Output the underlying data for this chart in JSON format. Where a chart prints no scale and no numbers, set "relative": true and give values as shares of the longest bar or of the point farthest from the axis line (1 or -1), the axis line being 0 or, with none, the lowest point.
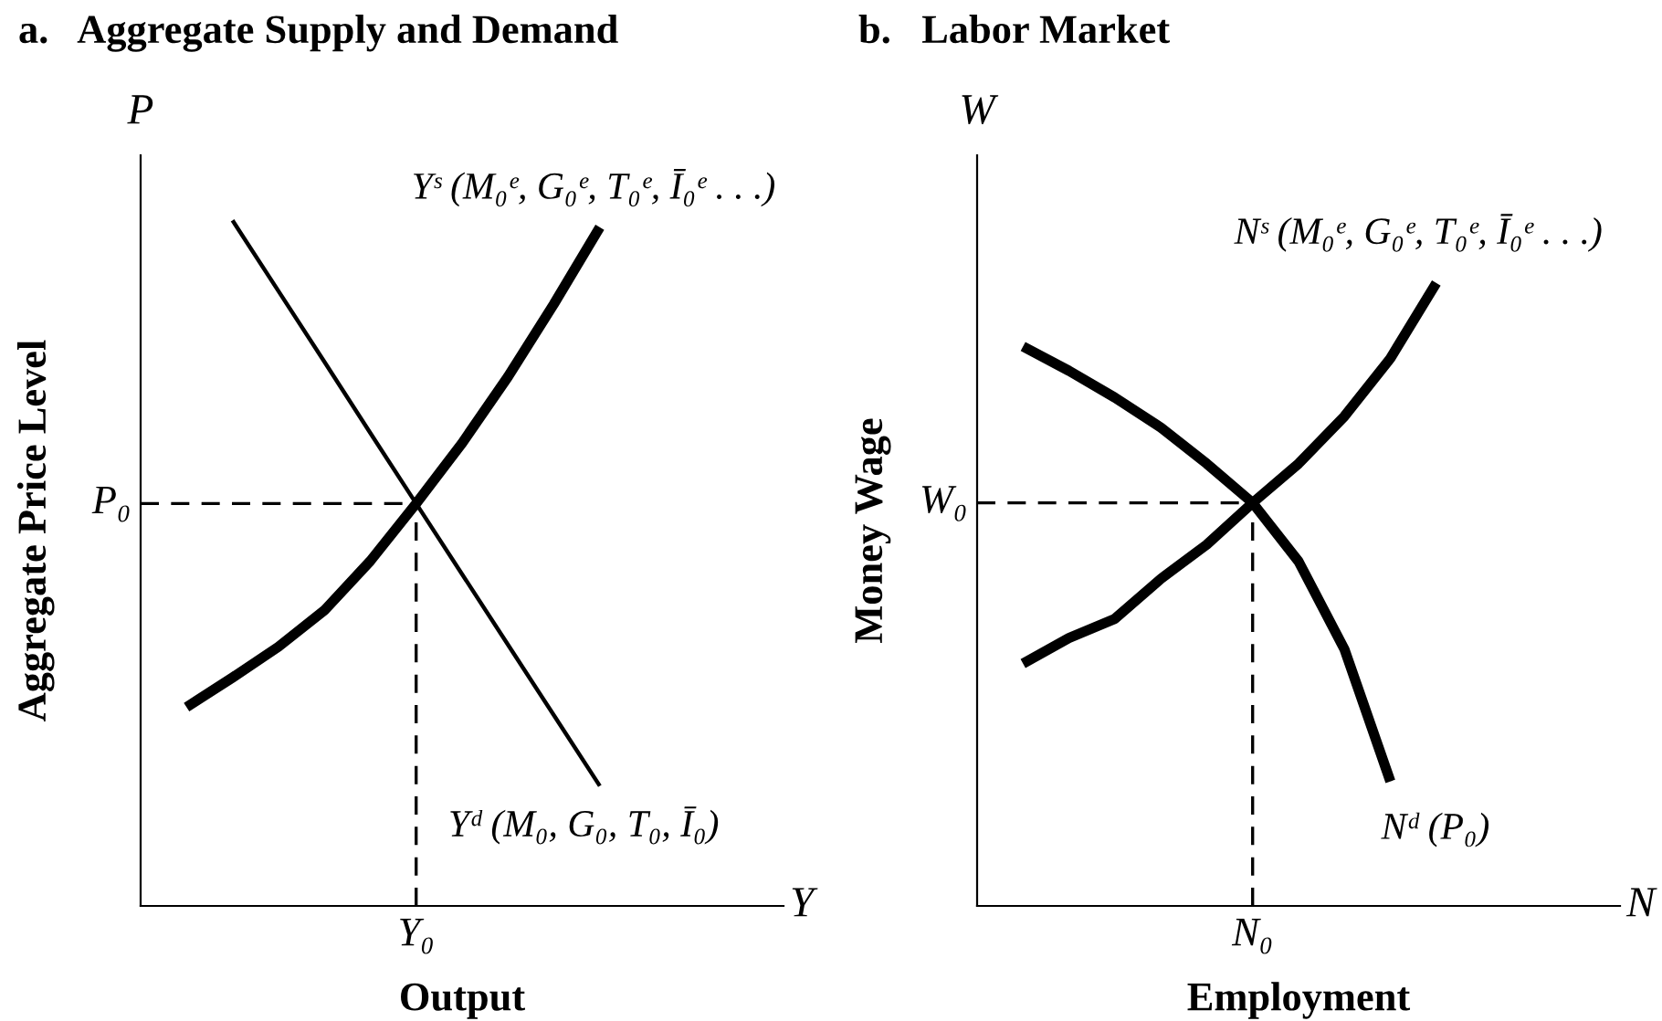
{
  "chart_data": [
    {
      "type": "line",
      "title": "a.   Aggregate Supply and Demand",
      "xlabel": "Output",
      "ylabel": "Aggregate Price Level",
      "relative": true,
      "marker": "none",
      "line_style": "solid",
      "annotations": [
        "P",
        "Y",
        "Y₀"
      ],
      "categories": [
        null,
        null,
        null,
        null,
        null,
        null,
        null,
        null,
        null,
        null,
        null,
        null,
        null,
        null,
        null
      ],
      "series": [
        {
          "name": "Yˢ (M₀ᵉ, G₀ᵉ, T₀ᵉ, Ī₀ᵉ . . .)",
          "color": "#000000",
          "values": [
            null,
            0.29,
            0.333,
            0.378,
            0.431,
            0.503,
            0.587,
            0.675,
            0.772,
            0.878,
            0.99,
            null,
            null,
            null,
            null
          ]
        },
        {
          "name": "Yᵈ (M₀, G₀, T₀, Ī₀)",
          "color": "#000000",
          "values": [
            null,
            null,
            1.0,
            0.897,
            0.794,
            0.69,
            0.587,
            0.484,
            0.381,
            0.278,
            0.175,
            null,
            null,
            null,
            null
          ]
        }
      ],
      "ref_lines": [
        {
          "axis": "y",
          "value": 0.587,
          "label": "P₀",
          "line_style": "dashed",
          "color": "#000000"
        }
      ]
    },
    {
      "type": "line",
      "title": "b.   Labor Market",
      "xlabel": "Employment",
      "ylabel": "Money Wage",
      "relative": true,
      "marker": "none",
      "line_style": "solid",
      "annotations": [
        "W",
        "N",
        "N₀"
      ],
      "categories": [
        null,
        null,
        null,
        null,
        null,
        null,
        null,
        null,
        null,
        null,
        null,
        null,
        null,
        null,
        null
      ],
      "series": [
        {
          "name": "Nˢ (M₀ᵉ, G₀ᵉ, T₀ᵉ, Ī₀ᵉ . . .)",
          "color": "#000000",
          "values": [
            null,
            0.389,
            0.43,
            0.461,
            0.525,
            0.58,
            0.647,
            0.71,
            0.786,
            0.879,
            1.0,
            null,
            null,
            null,
            null
          ]
        },
        {
          "name": "Nᵈ (P₀)",
          "color": "#000000",
          "values": [
            null,
            0.898,
            0.859,
            0.816,
            0.768,
            0.71,
            0.647,
            0.553,
            0.412,
            0.2,
            null,
            null,
            null,
            null,
            null
          ]
        }
      ],
      "ref_lines": [
        {
          "axis": "y",
          "value": 0.647,
          "label": "W₀",
          "line_style": "dashed",
          "color": "#000000"
        }
      ]
    }
  ]
}
